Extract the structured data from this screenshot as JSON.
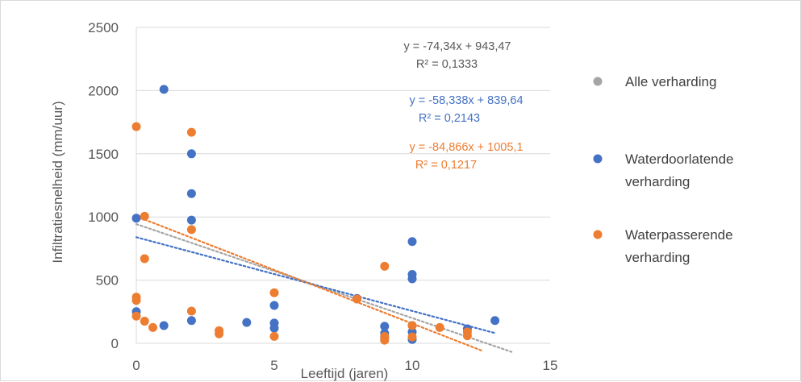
{
  "chart_data": {
    "type": "scatter",
    "title": "",
    "xlabel": "Leeftijd (jaren)",
    "ylabel": "Infiltratiesnelheid (mm/uur)",
    "xlim": [
      0,
      15
    ],
    "ylim": [
      0,
      2500
    ],
    "xticks": [
      "0",
      "5",
      "10",
      "15"
    ],
    "yticks": [
      "0",
      "500",
      "1000",
      "1500",
      "2000",
      "2500"
    ],
    "grid": "horizontal",
    "legend_position": "right",
    "series": [
      {
        "name": "Alle verharding",
        "color": "#a5a5a5",
        "points": [],
        "trendline": {
          "slope": -74.34,
          "intercept": 943.47,
          "x_range": [
            0,
            13.6
          ],
          "equation": "y = -74,34x + 943,47",
          "r2": "R² = 0,1333"
        }
      },
      {
        "name": "Waterdoorlatende verharding",
        "label_lines": [
          "Waterdoorlatende",
          "verharding"
        ],
        "color": "#4472c4",
        "points": [
          [
            0,
            990
          ],
          [
            0,
            250
          ],
          [
            1,
            2010
          ],
          [
            1,
            140
          ],
          [
            2,
            1500
          ],
          [
            2,
            1185
          ],
          [
            2,
            975
          ],
          [
            2,
            180
          ],
          [
            4,
            165
          ],
          [
            5,
            300
          ],
          [
            5,
            160
          ],
          [
            5,
            120
          ],
          [
            8,
            355
          ],
          [
            9,
            135
          ],
          [
            9,
            80
          ],
          [
            9,
            45
          ],
          [
            10,
            805
          ],
          [
            10,
            545
          ],
          [
            10,
            510
          ],
          [
            10,
            140
          ],
          [
            10,
            90
          ],
          [
            10,
            30
          ],
          [
            12,
            115
          ],
          [
            13,
            180
          ]
        ],
        "trendline": {
          "slope": -58.338,
          "intercept": 839.64,
          "x_range": [
            0,
            13
          ],
          "equation": "y = -58,338x + 839,64",
          "r2": "R² = 0,2143"
        }
      },
      {
        "name": "Waterpasserende verharding",
        "label_lines": [
          "Waterpasserende",
          "verharding"
        ],
        "color": "#ed7d31",
        "points": [
          [
            0,
            1715
          ],
          [
            0,
            365
          ],
          [
            0,
            340
          ],
          [
            0,
            215
          ],
          [
            0.3,
            1005
          ],
          [
            0.3,
            670
          ],
          [
            0.3,
            175
          ],
          [
            0.6,
            125
          ],
          [
            2,
            1670
          ],
          [
            2,
            900
          ],
          [
            2,
            255
          ],
          [
            3,
            100
          ],
          [
            3,
            75
          ],
          [
            5,
            400
          ],
          [
            5,
            55
          ],
          [
            8,
            350
          ],
          [
            9,
            610
          ],
          [
            9,
            55
          ],
          [
            9,
            25
          ],
          [
            10,
            140
          ],
          [
            10,
            50
          ],
          [
            11,
            125
          ],
          [
            12,
            90
          ],
          [
            12,
            60
          ]
        ],
        "trendline": {
          "slope": -84.866,
          "intercept": 1005.1,
          "x_range": [
            0,
            12.5
          ],
          "equation": "y = -84,866x + 1005,1",
          "r2": "R² = 0,1217"
        }
      }
    ]
  }
}
